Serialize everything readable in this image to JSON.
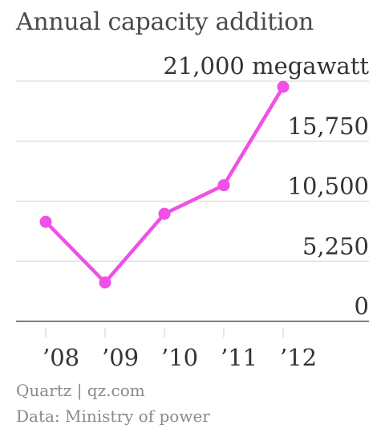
{
  "chart_data": {
    "type": "line",
    "title": "Annual capacity addition",
    "categories": [
      "’08",
      "’09",
      "’10",
      "’11",
      "’12"
    ],
    "values": [
      8700,
      3400,
      9400,
      11900,
      20500
    ],
    "ylim": [
      0,
      21000
    ],
    "yticks": [
      0,
      5250,
      10500,
      15750,
      21000
    ],
    "ytick_labels": [
      "0",
      "5,250",
      "10,500",
      "15,750",
      "21,000 megawatt"
    ],
    "grid": true,
    "color": "#f050e6"
  },
  "footer": {
    "source": "Quartz | qz.com",
    "data_note": "Data: Ministry of power"
  }
}
